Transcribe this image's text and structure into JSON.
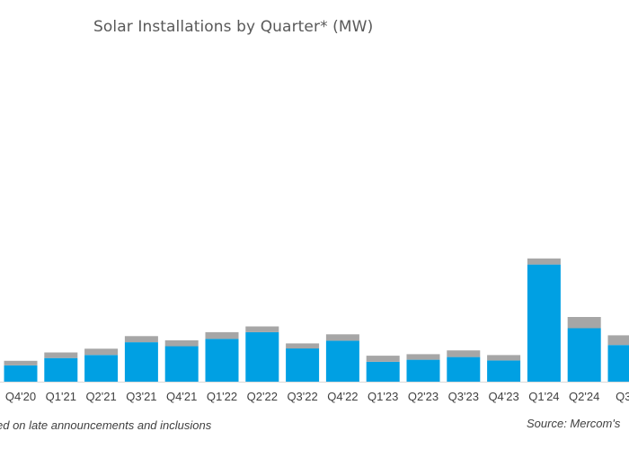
{
  "chart_data": {
    "type": "bar",
    "stacked": true,
    "title": "Solar Installations by Quarter* (MW)",
    "categories": [
      "Q4'20",
      "Q1'21",
      "Q2'21",
      "Q3'21",
      "Q4'21",
      "Q1'22",
      "Q2'22",
      "Q3'22",
      "Q4'22",
      "Q1'23",
      "Q2'23",
      "Q3'23",
      "Q4'23",
      "Q1'24",
      "Q2'24",
      "Q3'"
    ],
    "series": [
      {
        "color": "#00a0e3",
        "values": [
          160,
          232,
          262,
          387,
          348,
          420,
          486,
          326,
          402,
          195,
          215,
          242,
          208,
          1150,
          525,
          360
        ]
      },
      {
        "color": "#a6a6a6",
        "values": [
          45,
          55,
          62,
          60,
          58,
          66,
          56,
          50,
          63,
          60,
          55,
          65,
          53,
          60,
          110,
          95
        ]
      }
    ],
    "xlabel": "",
    "ylabel": "",
    "ylim": [
      0,
      1400
    ],
    "grid": false,
    "footnote": "ed on late announcements and inclusions",
    "source": "Source: Mercom's"
  }
}
